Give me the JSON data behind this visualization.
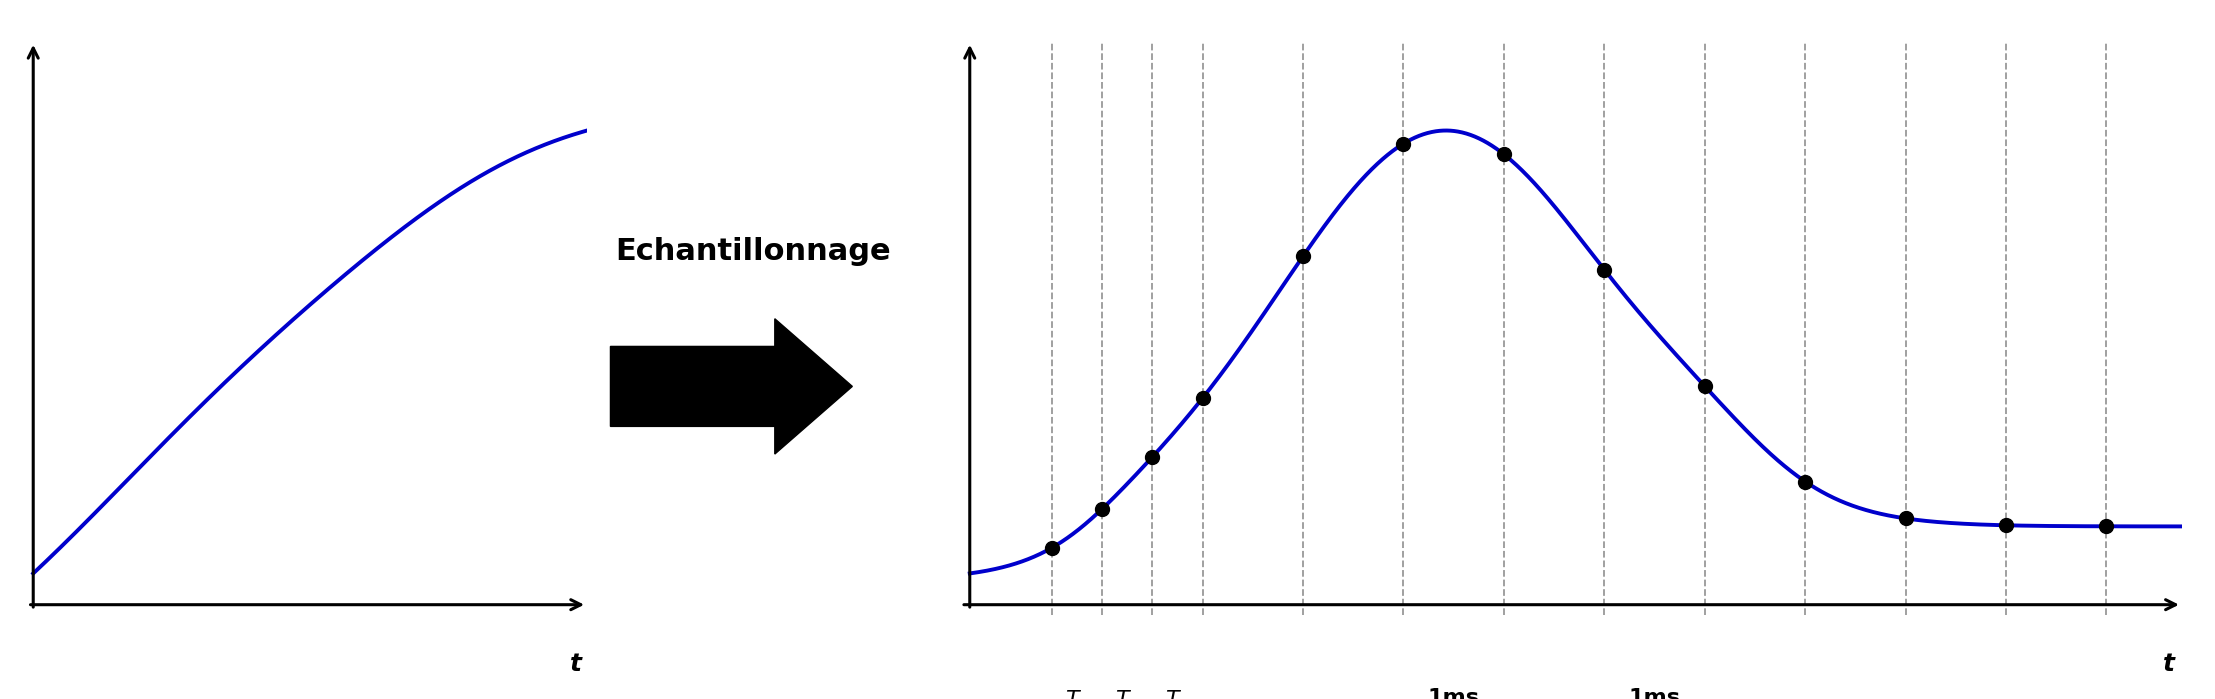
{
  "fig_width": 22.15,
  "fig_height": 6.99,
  "bg_color": "#ffffff",
  "line_color": "#0000cc",
  "line_width": 2.8,
  "dot_color": "#000000",
  "dot_size": 100,
  "arrow_text": "Echantillonnage",
  "arrow_text_fontsize": 22,
  "left_xlabel": "t",
  "right_xlabel": "t",
  "dashed_color": "#999999",
  "dashed_lw": 1.3,
  "annotation_fontsize": 16
}
